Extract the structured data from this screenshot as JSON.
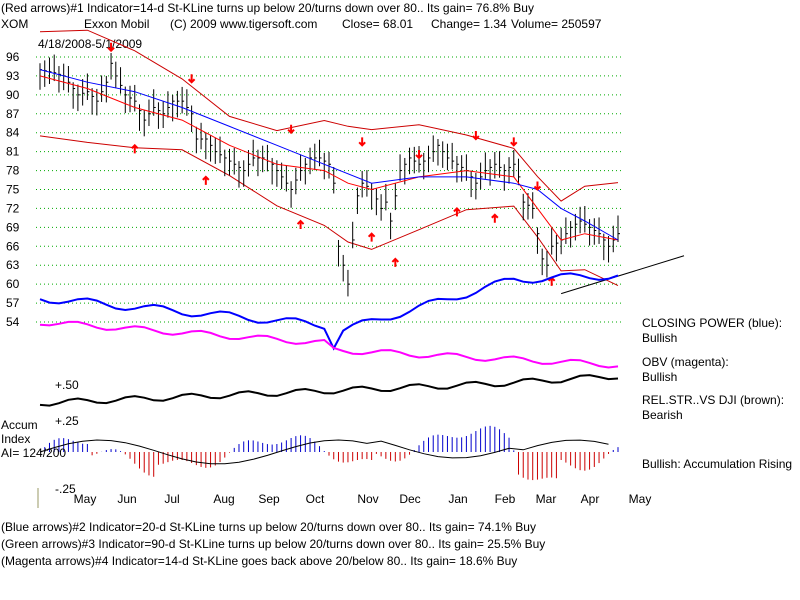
{
  "header": {
    "line1": "(Red arrows)#1 Indicator=14-d St-KLine turns up below 20/turns down over 80.. Its gain= 76.8% Buy",
    "ticker": "XOM",
    "company": "Exxon Mobil",
    "copyright": "(C) 2009 www.tigersoft.com",
    "close_text": "Close=  68.01",
    "change_text": "Change= 1.34",
    "volume_text": "Volume= 250597",
    "date_range": "4/18/2008-5/1/2009"
  },
  "right_panel": {
    "closing_power_label": "CLOSING POWER (blue):",
    "closing_power_value": "Bullish",
    "obv_label": "OBV (magenta):",
    "obv_value": "Bullish",
    "relstr_label": "REL.STR..VS DJI (brown):",
    "relstr_value": "Bearish",
    "accum_status": "Bullish: Accumulation Rising"
  },
  "accum_panel": {
    "label_line1": "Accum",
    "label_line2": "Index",
    "label_line3": "AI= 124/200",
    "upper_level": "+.50",
    "mid_level": "+.25",
    "lower_level": "-.25"
  },
  "footer": {
    "line1": "(Blue arrows)#2 Indicator=20-d St-KLine turns up below 20/turns down over 80.. Its gain= 74.1% Buy",
    "line2": "(Green arrows)#3 Indicator=90-d St-KLine turns up below 20/turns down over 80.. Its gain= 25.5% Buy",
    "line3": "(Magenta arrows)#4 Indicator=14-d St-KLine goes back above 20/below 80.. Its gain= 18.6% Buy"
  },
  "colors": {
    "price_bars": "#000000",
    "moving_average_short": "#ff0000",
    "moving_average_long": "#0000ff",
    "bands": "#cc0000",
    "closing_power": "#0000ff",
    "obv": "#ff00ff",
    "relstr": "#000000",
    "accum_positive": "#0000cc",
    "accum_negative": "#cc0000",
    "gridline": "#00aa00",
    "sell_arrow": "#ff0000",
    "buy_arrow": "#ff0000"
  },
  "chart_data": {
    "type": "line",
    "title": "Exxon Mobil",
    "x_tick_labels": [
      "May",
      "Jun",
      "Jul",
      "Aug",
      "Sep",
      "Oct",
      "Nov",
      "Dec",
      "Jan",
      "Feb",
      "Mar",
      "Apr",
      "May"
    ],
    "y_tick_labels": [
      96,
      93,
      90,
      87,
      84,
      81,
      78,
      75,
      72,
      69,
      66,
      63,
      60,
      57,
      54
    ],
    "ylim": [
      54,
      96
    ],
    "grid": true,
    "series": [
      {
        "points": [
          [
            0,
            94
          ],
          [
            3,
            93.5
          ],
          [
            5,
            93
          ],
          [
            7,
            91
          ],
          [
            8,
            90
          ],
          [
            10,
            90.5
          ],
          [
            12,
            89
          ],
          [
            14,
            92
          ],
          [
            15,
            95
          ],
          [
            16,
            93
          ],
          [
            18,
            90
          ],
          [
            20,
            89
          ],
          [
            22,
            86
          ],
          [
            24,
            88
          ],
          [
            26,
            87
          ],
          [
            28,
            89
          ],
          [
            30,
            89
          ],
          [
            32,
            87
          ],
          [
            33,
            83
          ],
          [
            35,
            83
          ],
          [
            37,
            81
          ],
          [
            39,
            80
          ],
          [
            41,
            79
          ],
          [
            43,
            78
          ],
          [
            45,
            80
          ],
          [
            47,
            80
          ],
          [
            49,
            79
          ],
          [
            51,
            77
          ],
          [
            53,
            75
          ],
          [
            55,
            78
          ],
          [
            57,
            80
          ],
          [
            59,
            80
          ],
          [
            61,
            79
          ],
          [
            62,
            76
          ],
          [
            63,
            66
          ],
          [
            64,
            63
          ],
          [
            65,
            60
          ],
          [
            66,
            67
          ],
          [
            67,
            74
          ],
          [
            68,
            76
          ],
          [
            70,
            75
          ],
          [
            72,
            72
          ],
          [
            73,
            73
          ],
          [
            74,
            70
          ],
          [
            76,
            78
          ],
          [
            78,
            80
          ],
          [
            80,
            79
          ],
          [
            82,
            80
          ],
          [
            84,
            82
          ],
          [
            86,
            80
          ],
          [
            88,
            79
          ],
          [
            90,
            78
          ],
          [
            92,
            76
          ],
          [
            94,
            78
          ],
          [
            96,
            79
          ],
          [
            98,
            78
          ],
          [
            100,
            79
          ],
          [
            101,
            77
          ],
          [
            102,
            73
          ],
          [
            104,
            72
          ],
          [
            105,
            68
          ],
          [
            106,
            64
          ],
          [
            107,
            63
          ],
          [
            108,
            66
          ],
          [
            110,
            67
          ],
          [
            112,
            69
          ],
          [
            114,
            70
          ],
          [
            116,
            69
          ],
          [
            118,
            68
          ],
          [
            120,
            66
          ],
          [
            121,
            67
          ],
          [
            122,
            68
          ]
        ]
      },
      {
        "points": [
          [
            0,
            93
          ],
          [
            10,
            91
          ],
          [
            20,
            88
          ],
          [
            30,
            86
          ],
          [
            40,
            82
          ],
          [
            50,
            79
          ],
          [
            60,
            78
          ],
          [
            65,
            76
          ],
          [
            70,
            75
          ],
          [
            80,
            77
          ],
          [
            90,
            78
          ],
          [
            100,
            77
          ],
          [
            105,
            72
          ],
          [
            110,
            67
          ],
          [
            115,
            68
          ],
          [
            122,
            67
          ]
        ]
      },
      {
        "points": [
          [
            0,
            94
          ],
          [
            10,
            92
          ],
          [
            20,
            90.5
          ],
          [
            30,
            88
          ],
          [
            40,
            85
          ],
          [
            50,
            82
          ],
          [
            60,
            79
          ],
          [
            70,
            76
          ],
          [
            80,
            77
          ],
          [
            90,
            77
          ],
          [
            100,
            76
          ],
          [
            105,
            75
          ],
          [
            110,
            72
          ],
          [
            115,
            70
          ],
          [
            122,
            67
          ]
        ]
      }
    ]
  }
}
